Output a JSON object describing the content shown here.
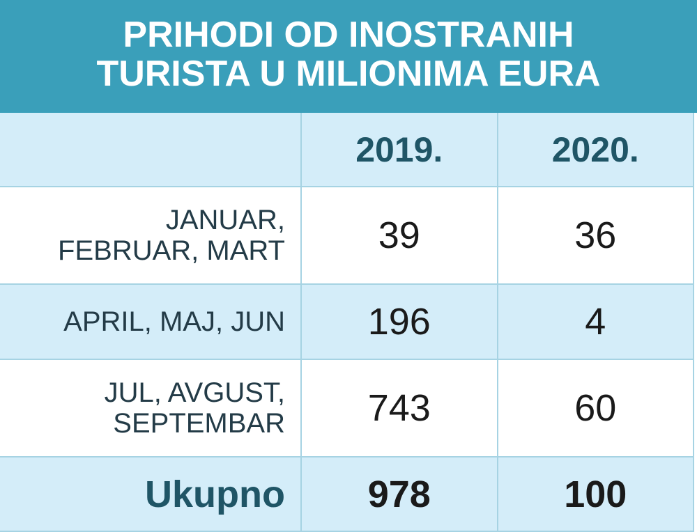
{
  "chart_data": {
    "type": "table",
    "title": "PRIHODI OD INOSTRANIH TURISTA U MILIONIMA EURA",
    "columns": [
      "",
      "2019.",
      "2020."
    ],
    "rows": [
      {
        "label": "JANUAR, FEBRUAR, MART",
        "values": [
          "39",
          "36"
        ]
      },
      {
        "label": "APRIL, MAJ, JUN",
        "values": [
          "196",
          "4"
        ]
      },
      {
        "label": "JUL, AVGUST, SEPTEMBAR",
        "values": [
          "743",
          "60"
        ]
      },
      {
        "label": "Ukupno",
        "values": [
          "978",
          "100"
        ]
      }
    ],
    "title_lines": [
      "PRIHODI OD INOSTRANIH",
      "TURISTA U MILIONIMA EURA"
    ],
    "row_label_lines": [
      [
        "JANUAR,",
        "FEBRUAR, MART"
      ],
      [
        "APRIL, MAJ, JUN"
      ],
      [
        "JUL, AVGUST,",
        "SEPTEMBAR"
      ]
    ],
    "colors": {
      "header_bg": "#3a9fba",
      "light_row": "#d4edf9",
      "border": "#a6d3e3",
      "accent_text": "#1f5566"
    }
  }
}
